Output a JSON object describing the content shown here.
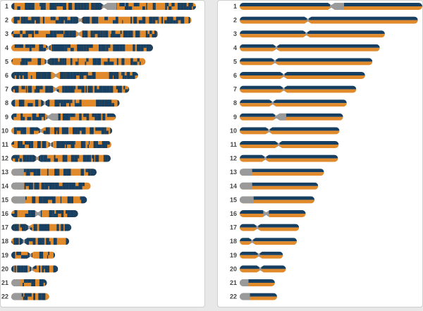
{
  "colors": {
    "navy": "#163f62",
    "orange": "#e08a2c",
    "gray": "#9a9a9a",
    "label": "#444444"
  },
  "chromosomes": [
    {
      "number": "1",
      "length": 249,
      "centromere": 125,
      "acrocentric": false
    },
    {
      "number": "2",
      "length": 243,
      "centromere": 93,
      "acrocentric": false
    },
    {
      "number": "3",
      "length": 198,
      "centromere": 91,
      "acrocentric": false
    },
    {
      "number": "4",
      "length": 191,
      "centromere": 50,
      "acrocentric": false
    },
    {
      "number": "5",
      "length": 181,
      "centromere": 48,
      "acrocentric": false
    },
    {
      "number": "6",
      "length": 171,
      "centromere": 60,
      "acrocentric": false
    },
    {
      "number": "7",
      "length": 159,
      "centromere": 60,
      "acrocentric": false
    },
    {
      "number": "8",
      "length": 146,
      "centromere": 45,
      "acrocentric": false
    },
    {
      "number": "9",
      "length": 141,
      "centromere": 50,
      "acrocentric": false
    },
    {
      "number": "10",
      "length": 136,
      "centromere": 40,
      "acrocentric": false
    },
    {
      "number": "11",
      "length": 135,
      "centromere": 53,
      "acrocentric": false
    },
    {
      "number": "12",
      "length": 134,
      "centromere": 35,
      "acrocentric": false
    },
    {
      "number": "13",
      "length": 115,
      "centromere": 17,
      "acrocentric": true
    },
    {
      "number": "14",
      "length": 107,
      "centromere": 17,
      "acrocentric": true
    },
    {
      "number": "15",
      "length": 102,
      "centromere": 19,
      "acrocentric": true
    },
    {
      "number": "16",
      "length": 90,
      "centromere": 36,
      "acrocentric": false
    },
    {
      "number": "17",
      "length": 81,
      "centromere": 24,
      "acrocentric": false
    },
    {
      "number": "18",
      "length": 78,
      "centromere": 17,
      "acrocentric": false
    },
    {
      "number": "19",
      "length": 59,
      "centromere": 26,
      "acrocentric": false
    },
    {
      "number": "20",
      "length": 63,
      "centromere": 28,
      "acrocentric": false
    },
    {
      "number": "21",
      "length": 48,
      "centromere": 12,
      "acrocentric": true
    },
    {
      "number": "22",
      "length": 51,
      "centromere": 14,
      "acrocentric": true
    }
  ]
}
